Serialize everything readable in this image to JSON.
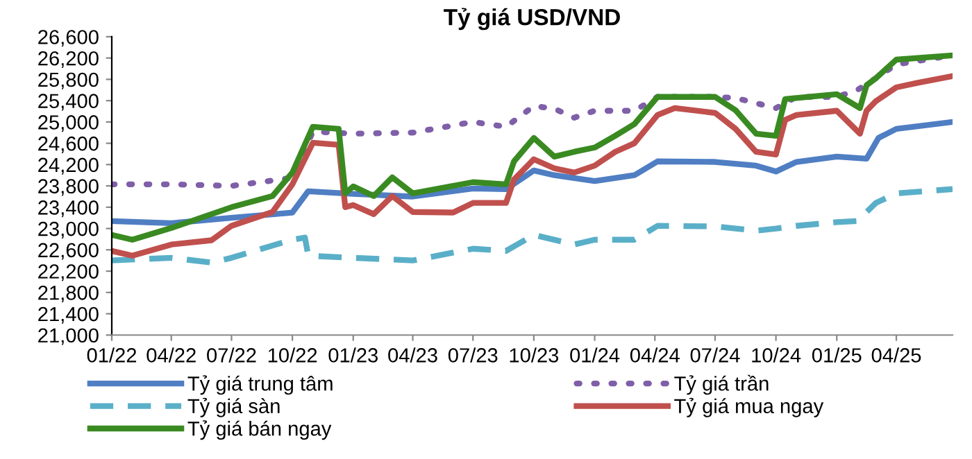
{
  "chart_data": {
    "type": "line",
    "title": "Tỷ giá USD/VND",
    "legend": "bottom",
    "grid": false,
    "xlim": [
      "2022-01-01",
      "2025-06-25"
    ],
    "xticks": [
      {
        "value": "2022-01-01",
        "label": "01/22"
      },
      {
        "value": "2022-04-01",
        "label": "04/22"
      },
      {
        "value": "2022-07-01",
        "label": "07/22"
      },
      {
        "value": "2022-10-01",
        "label": "10/22"
      },
      {
        "value": "2023-01-01",
        "label": "01/23"
      },
      {
        "value": "2023-04-01",
        "label": "04/23"
      },
      {
        "value": "2023-07-01",
        "label": "07/23"
      },
      {
        "value": "2023-10-01",
        "label": "10/23"
      },
      {
        "value": "2024-01-01",
        "label": "01/24"
      },
      {
        "value": "2024-04-01",
        "label": "04/24"
      },
      {
        "value": "2024-07-01",
        "label": "07/24"
      },
      {
        "value": "2024-10-01",
        "label": "10/24"
      },
      {
        "value": "2025-01-01",
        "label": "01/25"
      },
      {
        "value": "2025-04-01",
        "label": "04/25"
      }
    ],
    "ylim": [
      21000,
      26600
    ],
    "yticks": [
      {
        "value": 21000,
        "label": "21,000"
      },
      {
        "value": 21400,
        "label": "21,400"
      },
      {
        "value": 21800,
        "label": "21,800"
      },
      {
        "value": 22200,
        "label": "22,200"
      },
      {
        "value": 22600,
        "label": "22,600"
      },
      {
        "value": 23000,
        "label": "23,000"
      },
      {
        "value": 23400,
        "label": "23,400"
      },
      {
        "value": 23800,
        "label": "23,800"
      },
      {
        "value": 24200,
        "label": "24,200"
      },
      {
        "value": 24600,
        "label": "24,600"
      },
      {
        "value": 25000,
        "label": "25,000"
      },
      {
        "value": 25400,
        "label": "25,400"
      },
      {
        "value": 25800,
        "label": "25,800"
      },
      {
        "value": 26200,
        "label": "26,200"
      },
      {
        "value": 26600,
        "label": "26,600"
      }
    ],
    "series": [
      {
        "name": "Tỷ giá trung tâm",
        "color": "#4f7ec3",
        "line_style": "solid",
        "x": [
          "2022-01-01",
          "2022-04-01",
          "2022-07-01",
          "2022-10-01",
          "2022-10-25",
          "2023-01-01",
          "2023-04-01",
          "2023-07-01",
          "2023-08-20",
          "2023-10-01",
          "2023-11-01",
          "2024-01-01",
          "2024-03-01",
          "2024-04-05",
          "2024-07-01",
          "2024-09-01",
          "2024-10-01",
          "2024-11-01",
          "2025-01-01",
          "2025-02-15",
          "2025-03-05",
          "2025-04-01",
          "2025-06-25"
        ],
        "values": [
          23140,
          23100,
          23200,
          23300,
          23700,
          23650,
          23600,
          23750,
          23740,
          24090,
          24000,
          23890,
          24000,
          24260,
          24250,
          24180,
          24070,
          24250,
          24350,
          24310,
          24700,
          24870,
          25000
        ]
      },
      {
        "name": "Tỷ giá trần",
        "color": "#7f5fa8",
        "line_style": "dotted",
        "x": [
          "2022-01-01",
          "2022-04-01",
          "2022-07-01",
          "2022-10-01",
          "2022-11-01",
          "2023-01-01",
          "2023-04-01",
          "2023-07-01",
          "2023-08-20",
          "2023-10-01",
          "2023-11-01",
          "2023-12-01",
          "2024-01-01",
          "2024-03-01",
          "2024-04-05",
          "2024-07-01",
          "2024-08-01",
          "2024-10-01",
          "2024-11-01",
          "2025-01-01",
          "2025-02-01",
          "2025-03-01",
          "2025-04-01",
          "2025-06-25"
        ],
        "values": [
          23830,
          23830,
          23800,
          23950,
          24820,
          24780,
          24800,
          25000,
          24910,
          25300,
          25250,
          25080,
          25210,
          25210,
          25470,
          25470,
          25450,
          25260,
          25470,
          25470,
          25600,
          25820,
          26080,
          26250
        ]
      },
      {
        "name": "Tỷ giá sàn",
        "color": "#5aafc8",
        "line_style": "dashed",
        "x": [
          "2022-01-01",
          "2022-04-01",
          "2022-06-01",
          "2022-07-01",
          "2022-10-01",
          "2022-10-20",
          "2022-10-25",
          "2023-01-01",
          "2023-04-01",
          "2023-07-01",
          "2023-08-20",
          "2023-10-01",
          "2023-12-01",
          "2024-01-01",
          "2024-03-01",
          "2024-04-05",
          "2024-07-01",
          "2024-09-01",
          "2024-10-01",
          "2024-11-01",
          "2025-01-01",
          "2025-02-01",
          "2025-03-01",
          "2025-04-01",
          "2025-06-25"
        ],
        "values": [
          22400,
          22450,
          22360,
          22450,
          22790,
          22830,
          22490,
          22450,
          22400,
          22620,
          22580,
          22880,
          22700,
          22790,
          22790,
          23050,
          23040,
          22960,
          23000,
          23050,
          23120,
          23140,
          23480,
          23660,
          23740
        ]
      },
      {
        "name": "Tỷ giá mua ngay",
        "color": "#c0504d",
        "line_style": "solid",
        "x": [
          "2022-01-01",
          "2022-02-01",
          "2022-04-01",
          "2022-06-01",
          "2022-07-01",
          "2022-09-01",
          "2022-10-01",
          "2022-11-01",
          "2022-12-10",
          "2022-12-20",
          "2023-01-01",
          "2023-02-01",
          "2023-03-01",
          "2023-04-01",
          "2023-06-01",
          "2023-07-01",
          "2023-08-20",
          "2023-09-01",
          "2023-10-01",
          "2023-11-01",
          "2023-12-01",
          "2024-01-01",
          "2024-02-01",
          "2024-03-01",
          "2024-04-05",
          "2024-05-01",
          "2024-07-01",
          "2024-08-01",
          "2024-09-01",
          "2024-10-01",
          "2024-10-15",
          "2024-11-01",
          "2025-01-01",
          "2025-02-05",
          "2025-02-15",
          "2025-03-01",
          "2025-04-01",
          "2025-05-01",
          "2025-06-25"
        ],
        "values": [
          22580,
          22490,
          22700,
          22780,
          23050,
          23310,
          23830,
          24610,
          24570,
          23400,
          23440,
          23270,
          23610,
          23310,
          23300,
          23480,
          23480,
          23920,
          24300,
          24130,
          24050,
          24180,
          24440,
          24600,
          25130,
          25260,
          25170,
          24870,
          24440,
          24390,
          25040,
          25130,
          25210,
          24780,
          25210,
          25390,
          25650,
          25730,
          25860
        ]
      },
      {
        "name": "Tỷ giá bán ngay",
        "color": "#3a8a22",
        "line_style": "solid",
        "x": [
          "2022-01-01",
          "2022-02-01",
          "2022-04-01",
          "2022-07-01",
          "2022-09-01",
          "2022-10-01",
          "2022-11-01",
          "2022-12-10",
          "2022-12-20",
          "2023-01-01",
          "2023-02-01",
          "2023-03-01",
          "2023-04-01",
          "2023-07-01",
          "2023-08-20",
          "2023-09-01",
          "2023-10-01",
          "2023-11-01",
          "2023-12-01",
          "2024-01-01",
          "2024-02-01",
          "2024-03-01",
          "2024-04-05",
          "2024-07-01",
          "2024-08-01",
          "2024-09-01",
          "2024-10-01",
          "2024-10-15",
          "2025-01-01",
          "2025-02-05",
          "2025-02-15",
          "2025-03-01",
          "2025-04-01",
          "2025-06-25"
        ],
        "values": [
          22880,
          22790,
          23010,
          23400,
          23610,
          24050,
          24910,
          24870,
          23660,
          23790,
          23610,
          23960,
          23660,
          23870,
          23830,
          24260,
          24700,
          24350,
          24440,
          24520,
          24740,
          24960,
          25470,
          25470,
          25220,
          24780,
          24740,
          25430,
          25520,
          25260,
          25690,
          25820,
          26170,
          26250
        ]
      }
    ]
  }
}
